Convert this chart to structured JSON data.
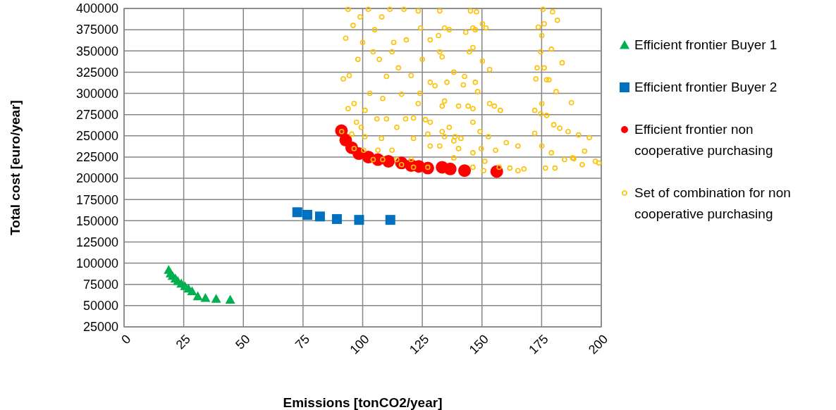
{
  "chart_data": {
    "type": "scatter",
    "xlabel": "Emissions [tonCO2/year]",
    "ylabel": "Total cost [euro/year]",
    "xlim": [
      0,
      200
    ],
    "xticks": [
      0,
      25,
      50,
      75,
      100,
      125,
      150,
      175,
      200
    ],
    "ylim": [
      25000,
      400000
    ],
    "yticks": [
      25000,
      50000,
      75000,
      100000,
      125000,
      150000,
      175000,
      200000,
      225000,
      250000,
      275000,
      300000,
      325000,
      350000,
      375000,
      400000
    ],
    "grid": true,
    "legend": "right",
    "series": [
      {
        "name": "Efficient frontier Buyer 1",
        "color": "#00b050",
        "marker": "triangle",
        "x": [
          18.7,
          19.5,
          20.3,
          21.5,
          22.5,
          24,
          25.5,
          27,
          28.5,
          30.9,
          34.1,
          38.6,
          44.5
        ],
        "values": [
          92000,
          88000,
          85000,
          82000,
          79000,
          76000,
          73000,
          70000,
          67000,
          61000,
          59000,
          58000,
          57000
        ]
      },
      {
        "name": "Efficient frontier Buyer 2",
        "color": "#0070c0",
        "marker": "square",
        "x": [
          72.6,
          76.8,
          82.1,
          89.2,
          98.5,
          111.6
        ],
        "values": [
          160000,
          157000,
          155000,
          152000,
          151000,
          151000
        ]
      },
      {
        "name": "Efficient frontier non cooperative purchasing",
        "color": "#ff0000",
        "marker": "circle",
        "x": [
          91.1,
          92.9,
          95.4,
          98.4,
          102.4,
          106.4,
          110.8,
          116.3,
          120.3,
          123.5,
          127.3,
          133.3,
          136.7,
          142.7,
          156.2
        ],
        "values": [
          256000,
          245000,
          236000,
          229000,
          225000,
          222000,
          220000,
          218000,
          215000,
          214000,
          212000,
          213000,
          211000,
          209000,
          208000
        ]
      },
      {
        "name": "Set of combination for non cooperative purchasing",
        "color": "#ffc000",
        "marker": "circle",
        "x": [
          93.9,
          92.9,
          94.4,
          96.4,
          99.4,
          91.9,
          93.9,
          97.4,
          91.2,
          96.4,
          104.4,
          116.3,
          95.4,
          100.4,
          108.4,
          100.9,
          106.4,
          114.3,
          121.3,
          107.9,
          112.3,
          120.3,
          127.3,
          102.4,
          104.4,
          108.4,
          114.3,
          121.3,
          128.3,
          111.4,
          112.3,
          116.3,
          121.3,
          127.3,
          132.3,
          138.2,
          117.3,
          118.3,
          120.3,
          123.3,
          128.3,
          134.3,
          140.2,
          146.2,
          123.3,
          124.3,
          128.3,
          132.3,
          138.2,
          132.3,
          134.3,
          136.3,
          131.8,
          133.3,
          135.3,
          145.2,
          146.2,
          147.2,
          147.7,
          150.2,
          151.7,
          143.2,
          144.7,
          147.2,
          146.2,
          150.2,
          153.2,
          128.3,
          134.3,
          140.2,
          146.2,
          155.2,
          157.7,
          130.3,
          133.3,
          136.3,
          138.7,
          142.2,
          144.2,
          146.2,
          149.2,
          152.7,
          142.7,
          148.2,
          153.2,
          126.3,
          133.3,
          138.2,
          141.2,
          146.2,
          151.2,
          157.2,
          149.7,
          155.7,
          160.2,
          165.1,
          150.7,
          161.7,
          165.1,
          167.6,
          175.6,
          176.1,
          179.6,
          181.6,
          173.6,
          174.6,
          176.1,
          178.1,
          175.1,
          179.1,
          183.6,
          172.6,
          175.1,
          177.1,
          180.1,
          182.6,
          173.1,
          177.1,
          181.1,
          187.5,
          172.1,
          175.1,
          179.1,
          184.6,
          188.5,
          186.1,
          190.5,
          195,
          197.5,
          192,
          176.6,
          180.6,
          172.1,
          174.6,
          188,
          199,
          193,
          96,
          99,
          100,
          105,
          107,
          110,
          98,
          103,
          101,
          110,
          115,
          113,
          108,
          106,
          118,
          124,
          125
        ],
        "values": [
          399000,
          365000,
          321000,
          288000,
          260000,
          317000,
          282000,
          266000,
          255000,
          235000,
          222000,
          216000,
          252000,
          233000,
          222000,
          249000,
          233000,
          222000,
          213000,
          247000,
          233000,
          222000,
          213000,
          399000,
          349000,
          294000,
          260000,
          247000,
          238000,
          399000,
          349000,
          299000,
          271000,
          252000,
          238000,
          224000,
          399000,
          363000,
          321000,
          288000,
          266000,
          249000,
          235000,
          213000,
          397000,
          377000,
          363000,
          349000,
          325000,
          397000,
          377000,
          375000,
          368000,
          343000,
          313000,
          397000,
          377000,
          375000,
          396000,
          382000,
          377000,
          372000,
          349000,
          313000,
          354000,
          338000,
          328000,
          313000,
          291000,
          285000,
          282000,
          285000,
          280000,
          309000,
          285000,
          260000,
          249000,
          310000,
          285000,
          266000,
          255000,
          249000,
          320000,
          302000,
          288000,
          269000,
          255000,
          244000,
          247000,
          230000,
          220000,
          213000,
          235000,
          233000,
          242000,
          238000,
          209000,
          212000,
          209000,
          211000,
          399000,
          382000,
          396000,
          386000,
          378000,
          349000,
          330000,
          316000,
          368000,
          352000,
          336000,
          317000,
          288000,
          274000,
          263000,
          259000,
          330000,
          316000,
          302000,
          289000,
          253000,
          238000,
          230000,
          222000,
          223000,
          255000,
          251000,
          248000,
          220000,
          216000,
          212000,
          212000,
          280000,
          276000,
          224000,
          218000,
          232000,
          380000,
          390000,
          360000,
          375000,
          340000,
          320000,
          340000,
          300000,
          280000,
          270000,
          330000,
          360000,
          390000,
          270000,
          270000,
          300000,
          340000
        ]
      }
    ]
  }
}
